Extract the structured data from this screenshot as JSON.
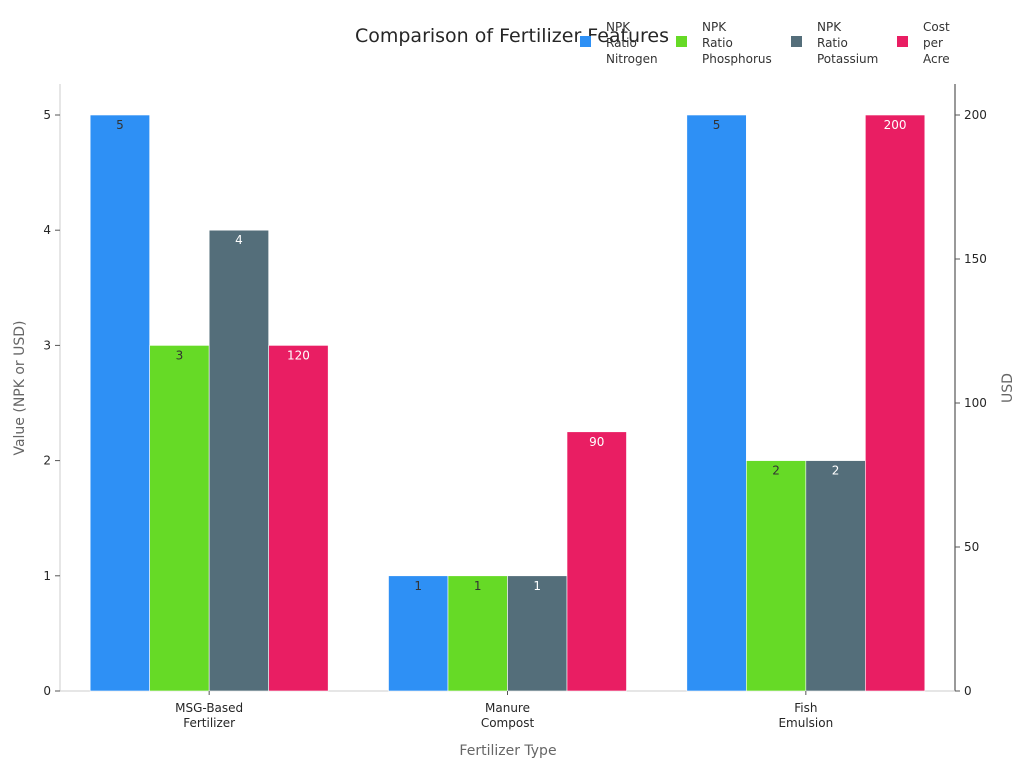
{
  "chart_data": {
    "type": "bar",
    "title": "Comparison of Fertilizer Features",
    "xlabel": "Fertilizer Type",
    "ylabel": "Value (NPK or USD)",
    "y2label": "USD",
    "categories": [
      [
        "MSG-Based",
        "Fertilizer"
      ],
      [
        "Manure",
        "Compost"
      ],
      [
        "Fish",
        "Emulsion"
      ]
    ],
    "ylim": [
      0,
      5
    ],
    "y2lim": [
      0,
      200
    ],
    "yticks": [
      "0",
      "1",
      "2",
      "3",
      "4",
      "5"
    ],
    "y2ticks": [
      "0",
      "50",
      "100",
      "150",
      "200"
    ],
    "series": [
      {
        "name": [
          "NPK",
          "Ratio",
          "Nitrogen"
        ],
        "axis": "left",
        "color": "#2e90f5",
        "label_color": "#333333",
        "values": [
          5,
          1,
          5
        ],
        "labels": [
          "5",
          "1",
          "5"
        ]
      },
      {
        "name": [
          "NPK",
          "Ratio",
          "Phosphorus"
        ],
        "axis": "left",
        "color": "#66da26",
        "label_color": "#333333",
        "values": [
          3,
          1,
          2
        ],
        "labels": [
          "3",
          "1",
          "2"
        ]
      },
      {
        "name": [
          "NPK",
          "Ratio",
          "Potassium"
        ],
        "axis": "left",
        "color": "#546e7a",
        "label_color": "#ffffff",
        "values": [
          4,
          1,
          2
        ],
        "labels": [
          "4",
          "1",
          "2"
        ]
      },
      {
        "name": [
          "Cost",
          "per",
          "Acre"
        ],
        "axis": "right",
        "color": "#e91e63",
        "label_color": "#ffffff",
        "values": [
          120,
          90,
          200
        ],
        "labels": [
          "120",
          "90",
          "200"
        ]
      }
    ],
    "grid": false,
    "legend_position": "top-right"
  }
}
